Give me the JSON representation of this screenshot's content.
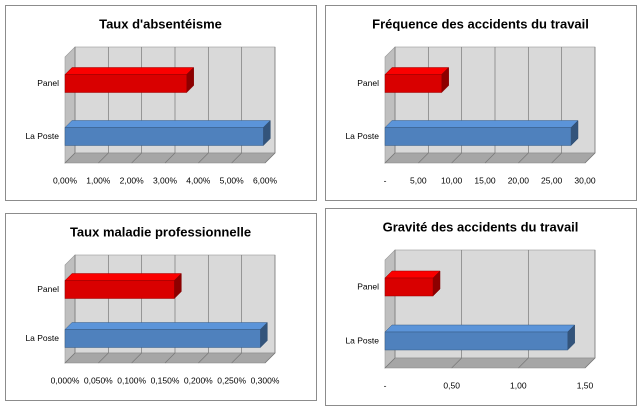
{
  "chart_data": [
    {
      "type": "bar",
      "orientation": "horizontal",
      "title": "Taux d'absentéisme",
      "categories": [
        "Panel",
        "La Poste"
      ],
      "values": [
        3.65,
        5.95
      ],
      "colors": [
        "#d90000",
        "#4f81bd"
      ],
      "xlim": [
        0,
        6
      ],
      "xticks": [
        {
          "value": 0,
          "label": "0,00%"
        },
        {
          "value": 1,
          "label": "1,00%"
        },
        {
          "value": 2,
          "label": "2,00%"
        },
        {
          "value": 3,
          "label": "3,00%"
        },
        {
          "value": 4,
          "label": "4,00%"
        },
        {
          "value": 5,
          "label": "5,00%"
        },
        {
          "value": 6,
          "label": "6,00%"
        }
      ],
      "grid": true
    },
    {
      "type": "bar",
      "orientation": "horizontal",
      "title": "Fréquence des accidents du travail",
      "categories": [
        "Panel",
        "La Poste"
      ],
      "values": [
        8.5,
        27.9
      ],
      "colors": [
        "#d90000",
        "#4f81bd"
      ],
      "xlim": [
        0,
        30
      ],
      "xticks": [
        {
          "value": 0,
          "label": "-"
        },
        {
          "value": 5,
          "label": "5,00"
        },
        {
          "value": 10,
          "label": "10,00"
        },
        {
          "value": 15,
          "label": "15,00"
        },
        {
          "value": 20,
          "label": "20,00"
        },
        {
          "value": 25,
          "label": "25,00"
        },
        {
          "value": 30,
          "label": "30,00"
        }
      ],
      "grid": true
    },
    {
      "type": "bar",
      "orientation": "horizontal",
      "title": "Taux maladie professionnelle",
      "categories": [
        "Panel",
        "La Poste"
      ],
      "values": [
        0.164,
        0.293
      ],
      "colors": [
        "#d90000",
        "#4f81bd"
      ],
      "xlim": [
        0,
        0.3
      ],
      "xticks": [
        {
          "value": 0,
          "label": "0,000%"
        },
        {
          "value": 0.05,
          "label": "0,050%"
        },
        {
          "value": 0.1,
          "label": "0,100%"
        },
        {
          "value": 0.15,
          "label": "0,150%"
        },
        {
          "value": 0.2,
          "label": "0,200%"
        },
        {
          "value": 0.25,
          "label": "0,250%"
        },
        {
          "value": 0.3,
          "label": "0,300%"
        }
      ],
      "grid": true
    },
    {
      "type": "bar",
      "orientation": "horizontal",
      "title": "Gravité des accidents du travail",
      "categories": [
        "Panel",
        "La Poste"
      ],
      "values": [
        0.36,
        1.37
      ],
      "colors": [
        "#d90000",
        "#4f81bd"
      ],
      "xlim": [
        0,
        1.5
      ],
      "xticks": [
        {
          "value": 0,
          "label": "-"
        },
        {
          "value": 0.5,
          "label": "0,50"
        },
        {
          "value": 1,
          "label": "1,00"
        },
        {
          "value": 1.5,
          "label": "1,50"
        }
      ],
      "grid": true
    }
  ]
}
